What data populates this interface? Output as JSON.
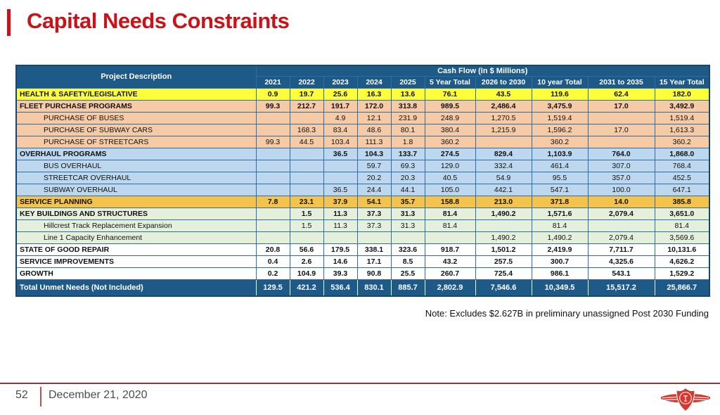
{
  "slide": {
    "title": "Capital Needs Constraints",
    "note": "Note: Excludes $2.627B in preliminary unassigned Post 2030 Funding",
    "footer": {
      "page_number": "52",
      "date": "December 21, 2020",
      "logo": "ttc-logo"
    }
  },
  "colors": {
    "title_red": "#CA1218",
    "header_blue": "#1E5A88",
    "total_row_blue": "#1E5A88",
    "row_yellow": "#FFFF3B",
    "row_peach": "#F7CAA6",
    "row_light_blue": "#BDD7EE",
    "row_gold": "#F5C24A",
    "row_green": "#E4F0DC",
    "footer_line_maroon": "#953735",
    "logo_red": "#D6372E"
  },
  "table": {
    "header": {
      "project_description": "Project Description",
      "cash_flow_title": "Cash Flow (In $ Millions)",
      "columns": [
        "2021",
        "2022",
        "2023",
        "2024",
        "2025",
        "5 Year Total",
        "2026 to 2030",
        "10 year Total",
        "2031 to 2035",
        "15 Year Total"
      ]
    },
    "rows": [
      {
        "label": "HEALTH & SAFETY/LEGISLATIVE",
        "style": "yellow",
        "bold": true,
        "indent": false,
        "values": [
          "0.9",
          "19.7",
          "25.6",
          "16.3",
          "13.6",
          "76.1",
          "43.5",
          "119.6",
          "62.4",
          "182.0"
        ]
      },
      {
        "label": "FLEET PURCHASE PROGRAMS",
        "style": "peach",
        "bold": true,
        "indent": false,
        "values": [
          "99.3",
          "212.7",
          "191.7",
          "172.0",
          "313.8",
          "989.5",
          "2,486.4",
          "3,475.9",
          "17.0",
          "3,492.9"
        ]
      },
      {
        "label": "PURCHASE OF BUSES",
        "style": "peach",
        "bold": false,
        "indent": true,
        "values": [
          "",
          "",
          "4.9",
          "12.1",
          "231.9",
          "248.9",
          "1,270.5",
          "1,519.4",
          "",
          "1,519.4"
        ]
      },
      {
        "label": "PURCHASE OF SUBWAY CARS",
        "style": "peach",
        "bold": false,
        "indent": true,
        "values": [
          "",
          "168.3",
          "83.4",
          "48.6",
          "80.1",
          "380.4",
          "1,215.9",
          "1,596.2",
          "17.0",
          "1,613.3"
        ]
      },
      {
        "label": "PURCHASE OF STREETCARS",
        "style": "peach",
        "bold": false,
        "indent": true,
        "values": [
          "99.3",
          "44.5",
          "103.4",
          "111.3",
          "1.8",
          "360.2",
          "",
          "360.2",
          "",
          "360.2"
        ]
      },
      {
        "label": "OVERHAUL PROGRAMS",
        "style": "blue",
        "bold": true,
        "indent": false,
        "values": [
          "",
          "",
          "36.5",
          "104.3",
          "133.7",
          "274.5",
          "829.4",
          "1,103.9",
          "764.0",
          "1,868.0"
        ]
      },
      {
        "label": "BUS OVERHAUL",
        "style": "blue",
        "bold": false,
        "indent": true,
        "values": [
          "",
          "",
          "",
          "59.7",
          "69.3",
          "129.0",
          "332.4",
          "461.4",
          "307.0",
          "768.4"
        ]
      },
      {
        "label": "STREETCAR OVERHAUL",
        "style": "blue",
        "bold": false,
        "indent": true,
        "values": [
          "",
          "",
          "",
          "20.2",
          "20.3",
          "40.5",
          "54.9",
          "95.5",
          "357.0",
          "452.5"
        ]
      },
      {
        "label": "SUBWAY OVERHAUL",
        "style": "blue",
        "bold": false,
        "indent": true,
        "values": [
          "",
          "",
          "36.5",
          "24.4",
          "44.1",
          "105.0",
          "442.1",
          "547.1",
          "100.0",
          "647.1"
        ]
      },
      {
        "label": "SERVICE PLANNING",
        "style": "gold",
        "bold": true,
        "indent": false,
        "values": [
          "7.8",
          "23.1",
          "37.9",
          "54.1",
          "35.7",
          "158.8",
          "213.0",
          "371.8",
          "14.0",
          "385.8"
        ]
      },
      {
        "label": "KEY BUILDINGS AND STRUCTURES",
        "style": "green",
        "bold": true,
        "indent": false,
        "values": [
          "",
          "1.5",
          "11.3",
          "37.3",
          "31.3",
          "81.4",
          "1,490.2",
          "1,571.6",
          "2,079.4",
          "3,651.0"
        ]
      },
      {
        "label": "Hillcrest Track Replacement Expansion",
        "style": "green",
        "bold": false,
        "indent": true,
        "values": [
          "",
          "1.5",
          "11.3",
          "37.3",
          "31.3",
          "81.4",
          "",
          "81.4",
          "",
          "81.4"
        ]
      },
      {
        "label": "Line 1 Capacity Enhancement",
        "style": "green",
        "bold": false,
        "indent": true,
        "values": [
          "",
          "",
          "",
          "",
          "",
          "",
          "1,490.2",
          "1,490.2",
          "2,079.4",
          "3,569.6"
        ]
      },
      {
        "label": "STATE OF GOOD REPAIR",
        "style": "white",
        "bold": true,
        "indent": false,
        "values": [
          "20.8",
          "56.6",
          "179.5",
          "338.1",
          "323.6",
          "918.7",
          "1,501.2",
          "2,419.9",
          "7,711.7",
          "10,131.6"
        ]
      },
      {
        "label": "SERVICE IMPROVEMENTS",
        "style": "white",
        "bold": true,
        "indent": false,
        "values": [
          "0.4",
          "2.6",
          "14.6",
          "17.1",
          "8.5",
          "43.2",
          "257.5",
          "300.7",
          "4,325.6",
          "4,626.2"
        ]
      },
      {
        "label": "GROWTH",
        "style": "white",
        "bold": true,
        "indent": false,
        "values": [
          "0.2",
          "104.9",
          "39.3",
          "90.8",
          "25.5",
          "260.7",
          "725.4",
          "986.1",
          "543.1",
          "1,529.2"
        ]
      }
    ],
    "total_row": {
      "label": "Total Unmet Needs (Not Included)",
      "values": [
        "129.5",
        "421.2",
        "536.4",
        "830.1",
        "885.7",
        "2,802.9",
        "7,546.6",
        "10,349.5",
        "15,517.2",
        "25,866.7"
      ]
    }
  }
}
